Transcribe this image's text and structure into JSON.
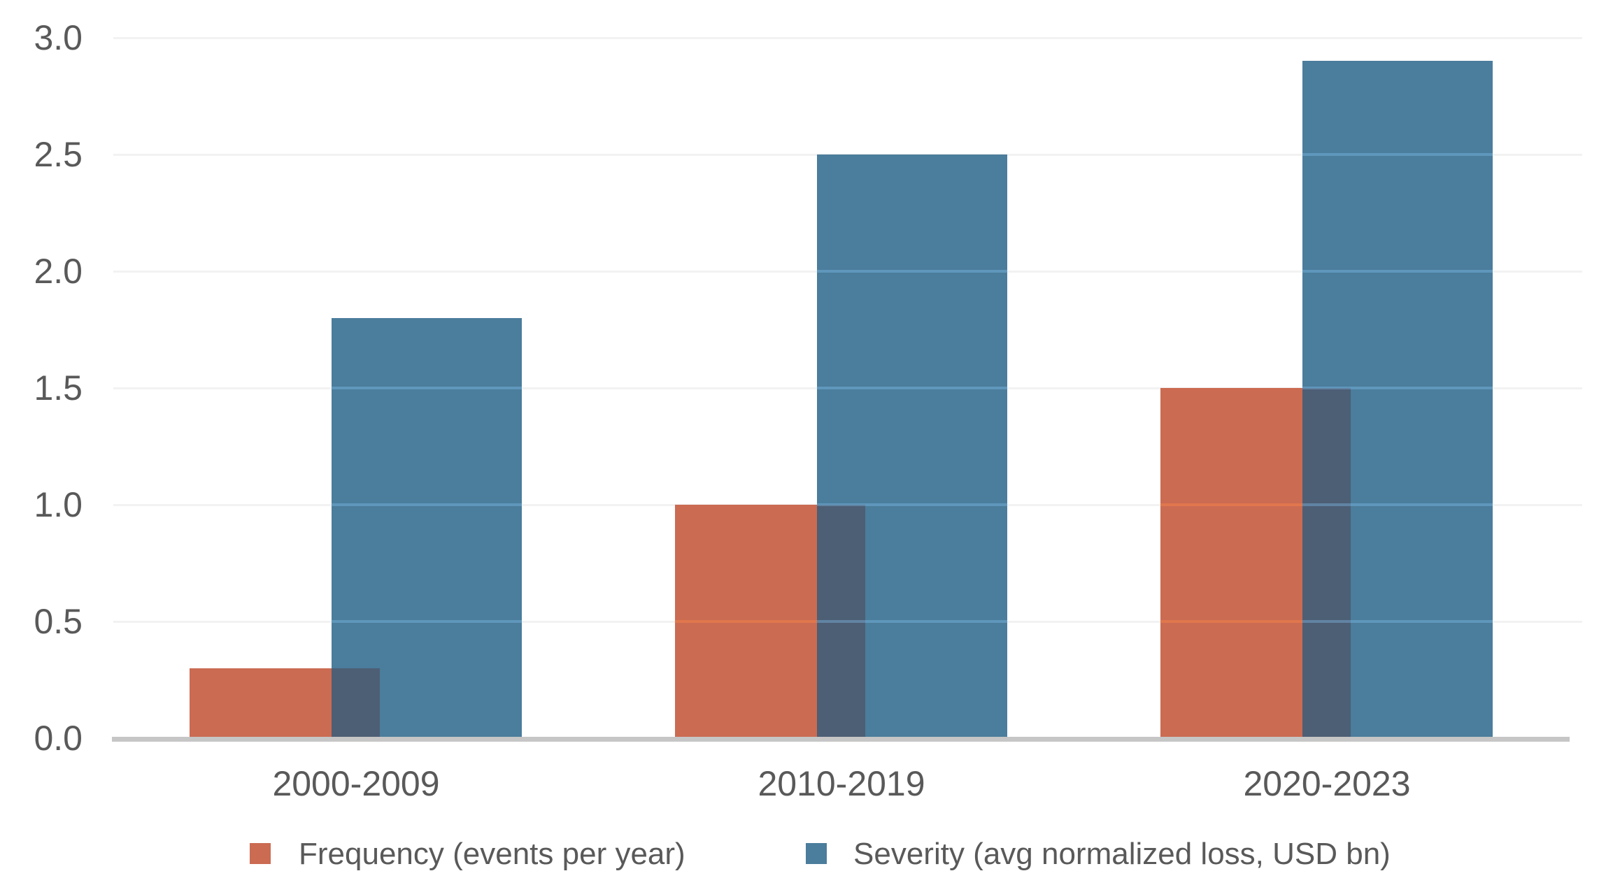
{
  "chart_data": {
    "type": "bar",
    "title": "",
    "xlabel": "",
    "ylabel": "",
    "categories": [
      "2000-2009",
      "2010-2019",
      "2020-2023"
    ],
    "series": [
      {
        "name": "Frequency (events per year)",
        "values": [
          0.3,
          1.0,
          1.5
        ],
        "color": "#cb6b52"
      },
      {
        "name": "Severity (avg normalized loss, USD bn)",
        "values": [
          1.8,
          2.5,
          2.9
        ],
        "color": "#4b7d9c"
      }
    ],
    "bar_overlap": true,
    "overlap_color": "#4d5f75",
    "ylim": [
      0.0,
      3.0
    ],
    "ytick_step": 0.5,
    "ytick_labels": [
      "0.0",
      "0.5",
      "1.0",
      "1.5",
      "2.0",
      "2.5",
      "3.0"
    ],
    "grid": true,
    "legend_position": "bottom",
    "colors": {
      "background": "#ffffff",
      "grid_line": "#f2f2f2",
      "axis_line": "#c6c6c6",
      "text": "#595959",
      "grid_over_frequency_bar": "rgba(255,138,70,0.4)",
      "grid_over_severity_bar": "rgba(135,200,250,0.35)"
    }
  }
}
